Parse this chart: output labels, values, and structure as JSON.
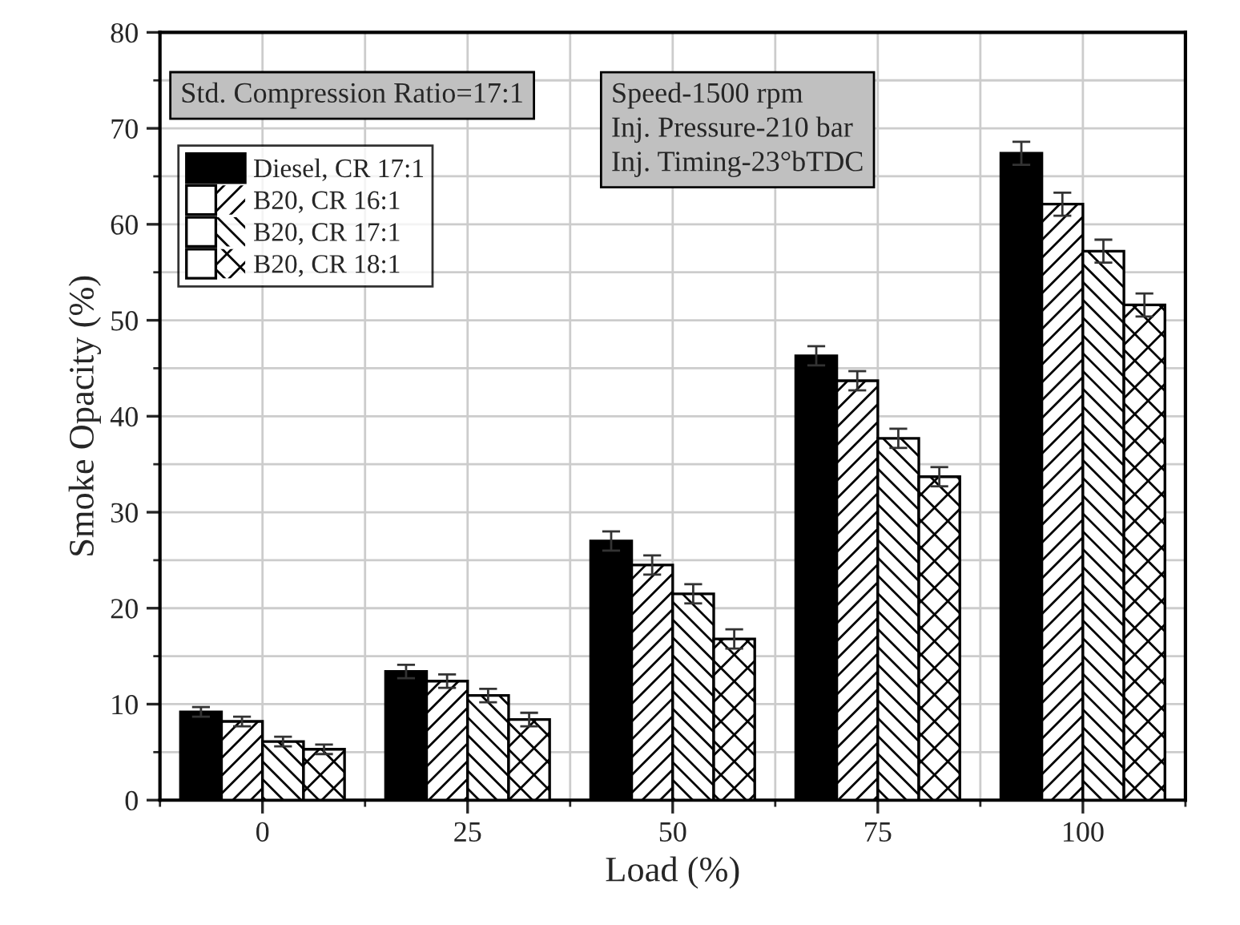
{
  "chart_data": {
    "type": "bar",
    "xlabel": "Load (%)",
    "ylabel": "Smoke Opacity (%)",
    "categories": [
      "0",
      "25",
      "50",
      "75",
      "100"
    ],
    "series": [
      {
        "name": "Diesel, CR 17:1",
        "color": "#000000",
        "values": [
          9.2,
          13.4,
          27.0,
          46.3,
          67.4
        ],
        "errors": [
          0.5,
          0.7,
          1.0,
          1.0,
          1.2
        ]
      },
      {
        "name": "B20, CR 16:1",
        "color": "#ffffff",
        "values": [
          8.2,
          12.4,
          24.5,
          43.7,
          62.1
        ],
        "errors": [
          0.5,
          0.7,
          1.0,
          1.0,
          1.2
        ]
      },
      {
        "name": "B20, CR 17:1",
        "color": "#ffffff",
        "values": [
          6.1,
          10.9,
          21.5,
          37.7,
          57.2
        ],
        "errors": [
          0.5,
          0.7,
          1.0,
          1.0,
          1.2
        ]
      },
      {
        "name": "B20, CR 18:1",
        "color": "#ffffff",
        "values": [
          5.3,
          8.4,
          16.8,
          33.7,
          51.6
        ],
        "errors": [
          0.5,
          0.7,
          1.0,
          1.0,
          1.2
        ]
      }
    ],
    "ylim": [
      0,
      80
    ],
    "yticks": [
      0,
      10,
      20,
      30,
      40,
      50,
      60,
      70,
      80
    ],
    "grid": true,
    "legend": "top left",
    "annotations": [
      "Std. Compression Ratio=17:1",
      "Speed-1500 rpm\nInj. Pressure-210 bar\nInj. Timing-23°bTDC"
    ]
  }
}
